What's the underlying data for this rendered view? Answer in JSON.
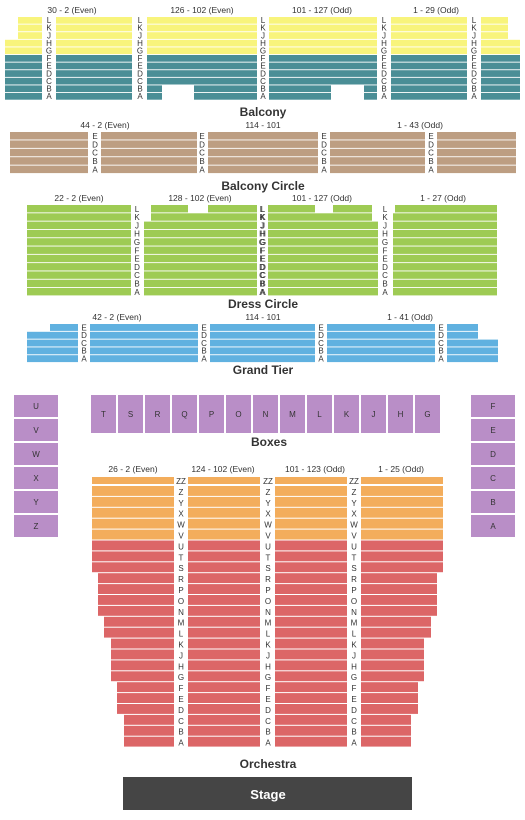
{
  "colors": {
    "balcony_top": "#f8f47c",
    "balcony_bottom": "#4a8e96",
    "balcony_circle": "#bd9e82",
    "dress_circle": "#9ecb54",
    "grand_tier": "#60b1e0",
    "boxes": "#b98ec7",
    "orch_top": "#f3ad5c",
    "orch_bottom": "#dc6667",
    "stage": "#454545"
  },
  "balcony": {
    "name": "Balcony",
    "headers": [
      "30 - 2 (Even)",
      "126 - 102 (Even)",
      "101 - 127 (Odd)",
      "1 - 29 (Odd)"
    ],
    "rows": [
      "L",
      "K",
      "J",
      "H",
      "G",
      "F",
      "E",
      "D",
      "C",
      "B",
      "A"
    ]
  },
  "balcony_circle": {
    "name": "Balcony Circle",
    "headers": [
      "44 - 2 (Even)",
      "114 - 101",
      "1 - 43 (Odd)"
    ],
    "rows": [
      "E",
      "D",
      "C",
      "B",
      "A"
    ]
  },
  "dress_circle": {
    "name": "Dress Circle",
    "headers": [
      "22 - 2 (Even)",
      "128 - 102 (Even)",
      "101 - 127 (Odd)",
      "1 - 27 (Odd)"
    ],
    "rows": [
      "L",
      "K",
      "J",
      "H",
      "G",
      "F",
      "E",
      "D",
      "C",
      "B",
      "A"
    ]
  },
  "grand_tier": {
    "name": "Grand Tier",
    "headers": [
      "42 - 2 (Even)",
      "114 - 101",
      "1 - 41 (Odd)"
    ],
    "rows": [
      "E",
      "D",
      "C",
      "B",
      "A"
    ]
  },
  "boxes": {
    "name": "Boxes",
    "left": [
      "U",
      "V",
      "W",
      "X",
      "Y",
      "Z"
    ],
    "center": [
      "T",
      "S",
      "R",
      "Q",
      "P",
      "O",
      "N",
      "M",
      "L",
      "K",
      "J",
      "H",
      "G"
    ],
    "right": [
      "F",
      "E",
      "D",
      "C",
      "B",
      "A"
    ]
  },
  "orchestra": {
    "name": "Orchestra",
    "headers": [
      "26 - 2 (Even)",
      "124 - 102 (Even)",
      "101 - 123 (Odd)",
      "1 - 25 (Odd)"
    ],
    "rows": [
      "ZZ",
      "Z",
      "Y",
      "X",
      "W",
      "V",
      "U",
      "T",
      "S",
      "R",
      "P",
      "O",
      "N",
      "M",
      "L",
      "K",
      "J",
      "H",
      "G",
      "F",
      "E",
      "D",
      "C",
      "B",
      "A"
    ]
  },
  "stage": {
    "label": "Stage"
  }
}
